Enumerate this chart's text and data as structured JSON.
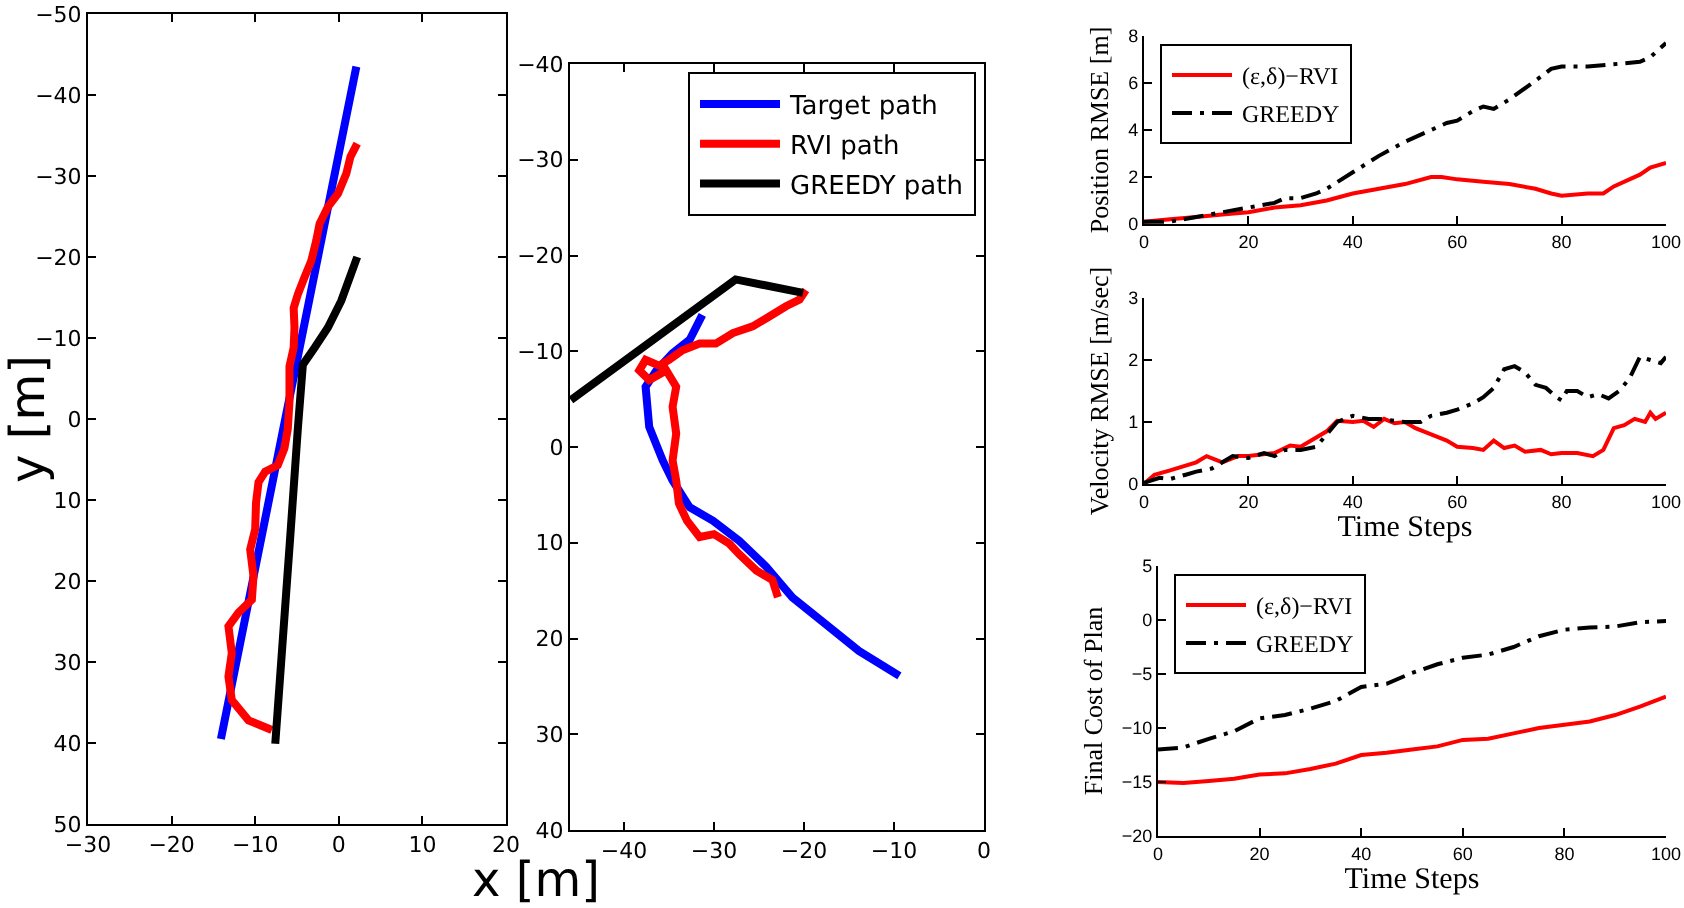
{
  "chart_data": [
    {
      "type": "line",
      "xlabel": "x [m]",
      "ylabel": "y [m]",
      "xlim": [
        -30,
        20
      ],
      "xticks": [
        -30,
        -20,
        -10,
        0,
        10,
        20
      ],
      "ylim": [
        50,
        -50
      ],
      "yticks": [
        -50,
        -40,
        -30,
        -20,
        -10,
        0,
        10,
        20,
        30,
        40,
        50
      ],
      "series": [
        {
          "color": "#0000ff",
          "x": [
            -14.1,
            -6.6,
            2.1
          ],
          "values": [
            39.5,
            1.0,
            -43.5
          ]
        },
        {
          "color": "#ff0000",
          "x": [
            -8.0,
            -10.8,
            -12.8,
            -13.2,
            -12.8,
            -13.2,
            -12.0,
            -10.4,
            -10.2,
            -10.6,
            -10.0,
            -9.9,
            -9.6,
            -8.8,
            -7.3,
            -6.5,
            -6.1,
            -5.9,
            -5.9,
            -5.4,
            -5.3,
            -5.4,
            -4.9,
            -4.1,
            -3.3,
            -2.7,
            -2.3,
            -1.3,
            -0.1,
            0.9,
            1.4,
            2.2
          ],
          "values": [
            38.4,
            37.2,
            34.7,
            31.8,
            28.9,
            25.6,
            23.9,
            22.3,
            19.4,
            16.1,
            13.6,
            10.3,
            7.8,
            6.5,
            5.7,
            3.6,
            1.2,
            -2.2,
            -6.5,
            -8.8,
            -11.3,
            -13.7,
            -15.4,
            -17.5,
            -19.5,
            -22.0,
            -24.1,
            -26.2,
            -27.8,
            -30.3,
            -32.4,
            -34.0
          ]
        },
        {
          "color": "#000000",
          "x": [
            -7.6,
            -6.9,
            -5.8,
            -4.9,
            -4.3,
            -2.9,
            -1.3,
            0.3,
            2.2
          ],
          "values": [
            40.1,
            30.1,
            14.4,
            1.2,
            -6.7,
            -8.8,
            -11.3,
            -14.6,
            -20.0
          ]
        }
      ]
    },
    {
      "type": "line",
      "xlim": [
        -46,
        0
      ],
      "xticks": [
        -40,
        -30,
        -20,
        -10,
        0
      ],
      "ylim": [
        40,
        -40
      ],
      "yticks": [
        -40,
        -30,
        -20,
        -10,
        0,
        10,
        20,
        30,
        40
      ],
      "legend": "top right",
      "series": [
        {
          "name": "Target path",
          "color": "#0000ff",
          "x": [
            -31.3,
            -32.7,
            -34.6,
            -36.4,
            -37.6,
            -37.2,
            -35.7,
            -34.6,
            -32.7,
            -30.1,
            -27.2,
            -24.2,
            -21.3,
            -17.6,
            -13.9,
            -9.4
          ],
          "values": [
            -13.8,
            -11.2,
            -9.8,
            -8.0,
            -6.3,
            -2.1,
            1.4,
            3.5,
            6.3,
            7.7,
            9.8,
            12.5,
            15.7,
            18.5,
            21.3,
            23.9
          ]
        },
        {
          "name": "RVI path",
          "color": "#ff0000",
          "x": [
            -22.9,
            -23.5,
            -25.3,
            -27.2,
            -28.3,
            -30.0,
            -31.6,
            -33.0,
            -33.9,
            -34.2,
            -34.6,
            -34.2,
            -34.6,
            -34.2,
            -35.3,
            -37.2,
            -38.3,
            -37.6,
            -36.1,
            -35.0,
            -33.5,
            -31.6,
            -29.8,
            -27.9,
            -25.7,
            -23.9,
            -22.0,
            -20.5,
            -19.8
          ],
          "values": [
            15.7,
            13.9,
            12.9,
            11.2,
            10.1,
            9.1,
            9.4,
            7.7,
            5.9,
            3.5,
            1.4,
            -1.4,
            -4.2,
            -6.3,
            -8.0,
            -7.0,
            -8.0,
            -9.1,
            -8.5,
            -9.1,
            -10.1,
            -10.8,
            -10.8,
            -11.9,
            -12.6,
            -13.6,
            -14.7,
            -15.4,
            -16.4
          ]
        },
        {
          "name": "GREEDY path",
          "color": "#000000",
          "x": [
            -45.9,
            -27.6,
            -20.1
          ],
          "values": [
            -4.9,
            -17.5,
            -16.1
          ]
        }
      ]
    },
    {
      "type": "line",
      "ylabel": "Position RMSE [m]",
      "xlim": [
        0,
        100
      ],
      "xticks": [
        0,
        20,
        40,
        60,
        80,
        100
      ],
      "ylim": [
        0,
        8
      ],
      "yticks": [
        0,
        2,
        4,
        6,
        8
      ],
      "legend": "top left",
      "series": [
        {
          "name": "(ε,δ)−RVI",
          "color": "#ff0000",
          "line_style": "solid",
          "x": [
            0,
            5,
            10,
            15,
            20,
            25,
            30,
            35,
            40,
            45,
            50,
            55,
            57,
            60,
            65,
            70,
            75,
            78,
            80,
            85,
            88,
            90,
            95,
            97,
            100
          ],
          "values": [
            0.1,
            0.2,
            0.3,
            0.4,
            0.5,
            0.7,
            0.8,
            1.0,
            1.3,
            1.5,
            1.7,
            2.0,
            2.0,
            1.9,
            1.8,
            1.7,
            1.5,
            1.3,
            1.2,
            1.3,
            1.3,
            1.6,
            2.1,
            2.4,
            2.6
          ]
        },
        {
          "name": "GREEDY",
          "color": "#000000",
          "line_style": "dashdot",
          "x": [
            0,
            5,
            10,
            15,
            20,
            25,
            27,
            30,
            33,
            35,
            40,
            45,
            50,
            55,
            58,
            60,
            63,
            65,
            67,
            70,
            75,
            78,
            80,
            85,
            90,
            95,
            97,
            100
          ],
          "values": [
            0.1,
            0.1,
            0.3,
            0.5,
            0.7,
            0.9,
            1.1,
            1.1,
            1.3,
            1.5,
            2.2,
            2.9,
            3.5,
            4.0,
            4.3,
            4.4,
            4.8,
            5.0,
            4.9,
            5.3,
            6.1,
            6.6,
            6.7,
            6.7,
            6.8,
            6.9,
            7.1,
            7.7
          ]
        }
      ]
    },
    {
      "type": "line",
      "xlabel": "Time Steps",
      "ylabel": "Velocity RMSE [m/sec]",
      "xlim": [
        0,
        100
      ],
      "xticks": [
        0,
        20,
        40,
        60,
        80,
        100
      ],
      "ylim": [
        0,
        3
      ],
      "yticks": [
        0,
        1,
        2,
        3
      ],
      "series": [
        {
          "color": "#ff0000",
          "line_style": "solid",
          "x": [
            0,
            2,
            5,
            10,
            12,
            15,
            18,
            20,
            25,
            28,
            30,
            33,
            35,
            37,
            40,
            42,
            44,
            46,
            48,
            50,
            52,
            55,
            58,
            60,
            63,
            65,
            67,
            69,
            71,
            73,
            76,
            78,
            80,
            83,
            86,
            88,
            90,
            92,
            94,
            96,
            97,
            98,
            100
          ],
          "values": [
            0,
            0.15,
            0.22,
            0.35,
            0.45,
            0.35,
            0.45,
            0.45,
            0.5,
            0.62,
            0.6,
            0.75,
            0.85,
            1.02,
            1.0,
            1.02,
            0.92,
            1.05,
            0.98,
            1.0,
            0.9,
            0.8,
            0.7,
            0.6,
            0.58,
            0.55,
            0.7,
            0.58,
            0.62,
            0.52,
            0.55,
            0.48,
            0.5,
            0.5,
            0.45,
            0.55,
            0.9,
            0.95,
            1.05,
            1.0,
            1.15,
            1.05,
            1.15
          ]
        },
        {
          "color": "#000000",
          "line_style": "dashdot",
          "x": [
            0,
            3,
            5,
            8,
            10,
            13,
            15,
            17,
            20,
            23,
            25,
            27,
            30,
            33,
            35,
            37,
            40,
            43,
            45,
            48,
            50,
            53,
            55,
            58,
            60,
            63,
            65,
            67,
            69,
            71,
            73,
            75,
            77,
            79,
            80,
            81,
            83,
            85,
            87,
            89,
            91,
            93,
            95,
            97,
            99,
            100
          ],
          "values": [
            0.02,
            0.1,
            0.08,
            0.15,
            0.2,
            0.25,
            0.35,
            0.45,
            0.42,
            0.5,
            0.45,
            0.55,
            0.55,
            0.6,
            0.8,
            1.0,
            1.1,
            1.05,
            1.05,
            1.02,
            1.0,
            1.0,
            1.1,
            1.15,
            1.2,
            1.3,
            1.4,
            1.55,
            1.85,
            1.9,
            1.8,
            1.6,
            1.55,
            1.4,
            1.35,
            1.5,
            1.5,
            1.4,
            1.45,
            1.38,
            1.5,
            1.7,
            2.05,
            2.0,
            1.95,
            2.05
          ]
        }
      ]
    },
    {
      "type": "line",
      "xlabel": "Time Steps",
      "ylabel": "Final Cost of Plan",
      "xlim": [
        0,
        100
      ],
      "xticks": [
        0,
        20,
        40,
        60,
        80,
        100
      ],
      "ylim": [
        -20,
        5
      ],
      "yticks": [
        -20,
        -15,
        -10,
        -5,
        0,
        5
      ],
      "legend": "top left",
      "x": [
        0,
        5,
        10,
        15,
        20,
        25,
        30,
        35,
        40,
        45,
        50,
        55,
        60,
        65,
        70,
        75,
        80,
        85,
        90,
        95,
        100
      ],
      "series": [
        {
          "name": "(ε,δ)−RVI",
          "color": "#ff0000",
          "line_style": "solid",
          "values": [
            -15.0,
            -15.1,
            -14.9,
            -14.7,
            -14.3,
            -14.2,
            -13.8,
            -13.3,
            -12.5,
            -12.3,
            -12.0,
            -11.7,
            -11.1,
            -11.0,
            -10.5,
            -10.0,
            -9.7,
            -9.4,
            -8.8,
            -8.0,
            -7.1
          ]
        },
        {
          "name": "GREEDY",
          "color": "#000000",
          "line_style": "dashdot",
          "values": [
            -12.0,
            -11.8,
            -11.0,
            -10.3,
            -9.1,
            -8.8,
            -8.2,
            -7.5,
            -6.2,
            -5.9,
            -4.9,
            -4.1,
            -3.5,
            -3.2,
            -2.5,
            -1.5,
            -0.9,
            -0.7,
            -0.6,
            -0.2,
            -0.1
          ]
        }
      ]
    }
  ]
}
